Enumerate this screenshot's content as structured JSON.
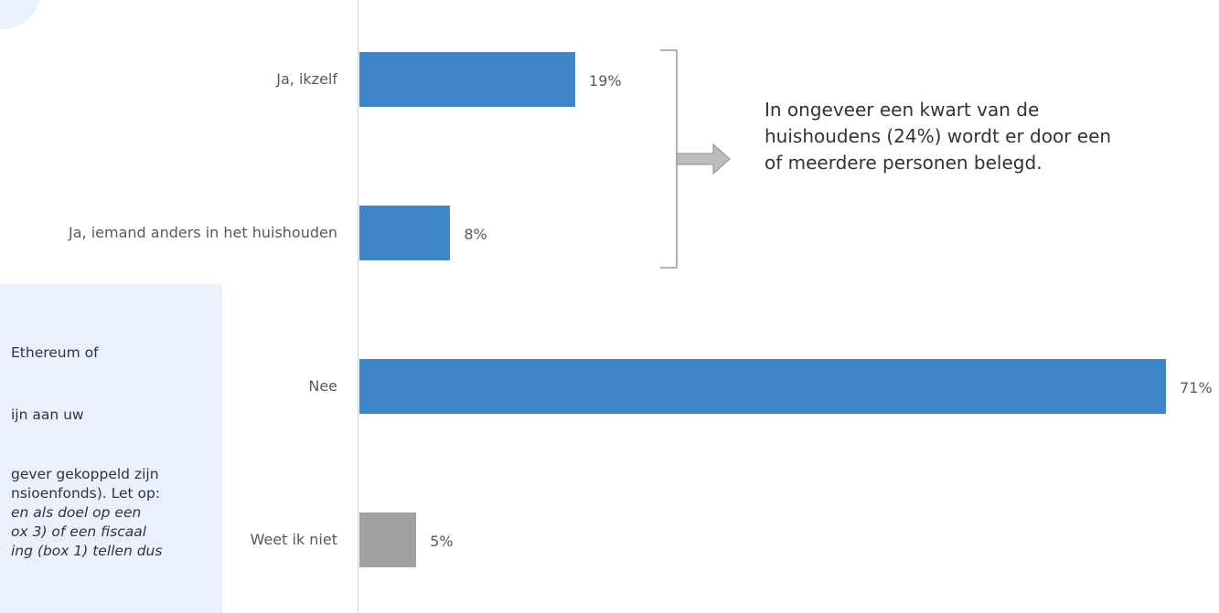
{
  "chart_data": {
    "type": "bar",
    "orientation": "horizontal",
    "categories": [
      "Ja, ikzelf",
      "Ja, iemand anders in het huishouden",
      "Nee",
      "Weet ik niet"
    ],
    "values": [
      19,
      8,
      71,
      5
    ],
    "value_labels": [
      "19%",
      "8%",
      "71%",
      "5%"
    ],
    "colors": [
      "#3f86c9",
      "#3f86c9",
      "#3f86c9",
      "#a0a0a0"
    ],
    "xlim": [
      0,
      71
    ],
    "grid": false,
    "annotation": "In ongeveer een kwart van de huishoudens (24%) wordt er door een of meerdere personen belegd."
  },
  "info_box": {
    "lines": [
      "Ethereum of",
      "ijn aan uw",
      "gever gekoppeld zijn",
      "nsioenfonds). Let op:",
      "en als doel op een",
      "ox 3) of een fiscaal",
      "ing (box 1) tellen dus"
    ]
  }
}
